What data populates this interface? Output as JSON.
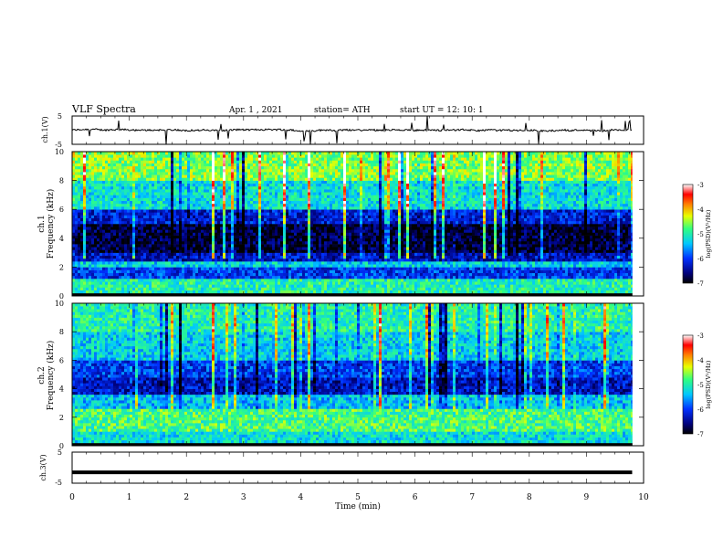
{
  "header": {
    "title": "VLF  Spectra",
    "date": "Apr. 1  , 2021",
    "station": "station= ATH",
    "start": "start  UT  =    12: 10: 1"
  },
  "chart_data": [
    {
      "type": "line",
      "panel": "ch1-waveform",
      "ylabel": "ch.1(V)",
      "ylim": [
        -5,
        5
      ],
      "yticks": [
        "5",
        "-5"
      ],
      "xlim": [
        0,
        10
      ],
      "baseline_v": 0,
      "trace_color": "#000000"
    },
    {
      "type": "heatmap",
      "panel": "ch1-spectrogram",
      "ylabel_top": "ch.1",
      "ylabel": "Frequency  (kHz)",
      "ylim": [
        0,
        10
      ],
      "yticks": [
        "0",
        "2",
        "4",
        "6",
        "8",
        "10"
      ],
      "xlim": [
        0,
        10
      ],
      "colorbar": {
        "label": "log(PSD)(V²/Hz)",
        "range": [
          -7,
          -3
        ],
        "ticks": [
          "-3",
          "-4",
          "-5",
          "-6",
          "-7"
        ]
      },
      "bands_khz": [
        {
          "from": 0,
          "to": 0.3,
          "level": -7.0
        },
        {
          "from": 0.3,
          "to": 1.2,
          "level": -5.0
        },
        {
          "from": 1.2,
          "to": 2.0,
          "level": -6.0
        },
        {
          "from": 2.0,
          "to": 2.4,
          "level": -5.3
        },
        {
          "from": 2.4,
          "to": 3.0,
          "level": -6.3
        },
        {
          "from": 3.0,
          "to": 5.0,
          "level": -6.8
        },
        {
          "from": 5.0,
          "to": 6.0,
          "level": -6.2
        },
        {
          "from": 6.0,
          "to": 8.0,
          "level": -5.2
        },
        {
          "from": 8.0,
          "to": 10.0,
          "level": -4.6
        }
      ]
    },
    {
      "type": "heatmap",
      "panel": "ch2-spectrogram",
      "ylabel_top": "ch.2",
      "ylabel": "Frequency  (kHz)",
      "ylim": [
        0,
        10
      ],
      "yticks": [
        "0",
        "2",
        "4",
        "6",
        "8",
        "10"
      ],
      "xlim": [
        0,
        10
      ],
      "colorbar": {
        "label": "log(PSD)(V²/Hz)",
        "range": [
          -7,
          -3
        ],
        "ticks": [
          "-3",
          "-4",
          "-5",
          "-6",
          "-7"
        ]
      },
      "bands_khz": [
        {
          "from": 0,
          "to": 0.3,
          "level": -7.0
        },
        {
          "from": 0.3,
          "to": 1.0,
          "level": -5.2
        },
        {
          "from": 1.0,
          "to": 2.6,
          "level": -4.8
        },
        {
          "from": 2.6,
          "to": 3.6,
          "level": -5.4
        },
        {
          "from": 3.6,
          "to": 4.8,
          "level": -6.3
        },
        {
          "from": 4.8,
          "to": 6.0,
          "level": -6.0
        },
        {
          "from": 6.0,
          "to": 8.0,
          "level": -5.3
        },
        {
          "from": 8.0,
          "to": 10.0,
          "level": -5.0
        }
      ]
    },
    {
      "type": "line",
      "panel": "ch3-waveform",
      "ylabel": "ch.3(V)",
      "ylim": [
        -5,
        5
      ],
      "yticks": [
        "5",
        "-5"
      ],
      "xlim": [
        0,
        10
      ],
      "xticks": [
        "0",
        "1",
        "2",
        "3",
        "4",
        "5",
        "6",
        "7",
        "8",
        "9",
        "10"
      ],
      "xlabel": "Time  (min)",
      "baseline_v": -1.5,
      "data_end_min": 9.8,
      "trace_color": "#000000"
    }
  ]
}
